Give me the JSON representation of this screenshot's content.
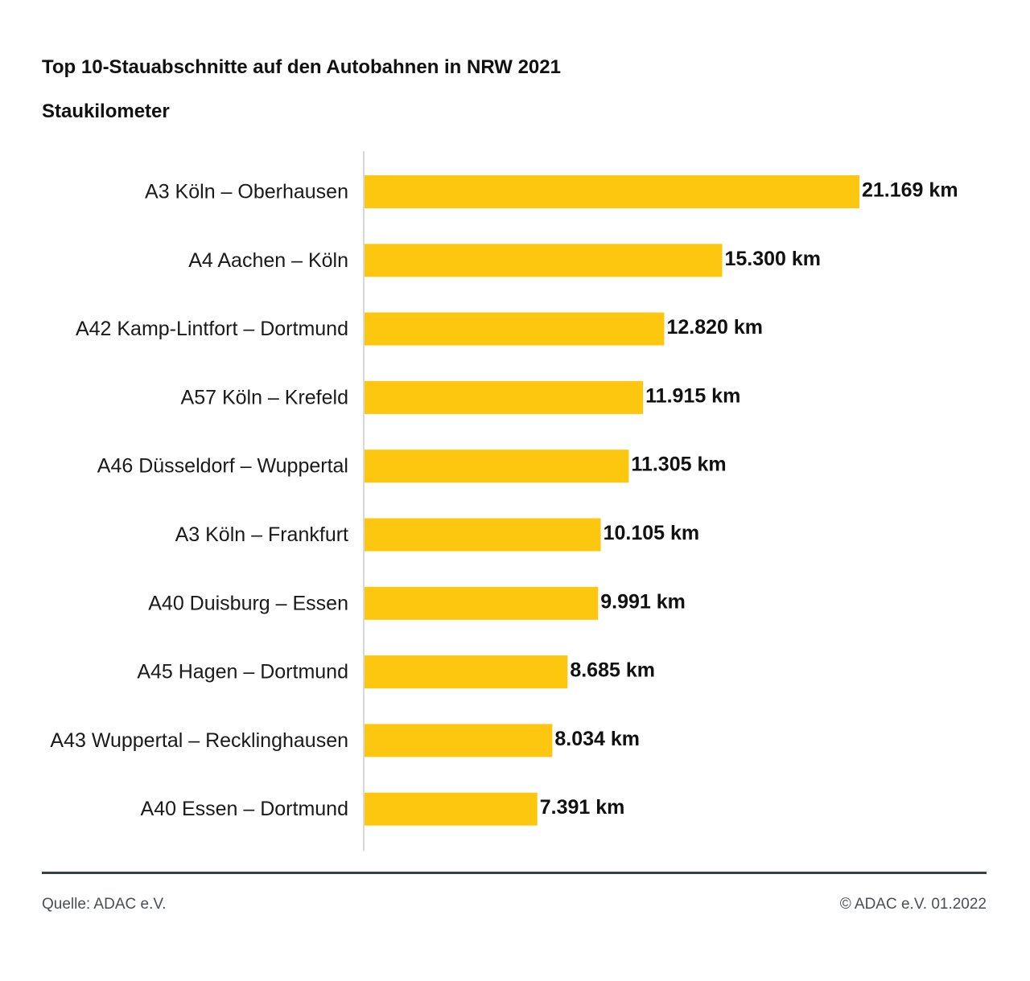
{
  "colors": {
    "bar": "#FDC70F",
    "axis": "#C8CCCF",
    "footer_rule": "#3A3F44"
  },
  "chart_data": {
    "type": "bar",
    "orientation": "horizontal",
    "title": "Top 10-Stauabschnitte auf den Autobahnen in NRW 2021",
    "subtitle": "Staukilometer",
    "unit": "km",
    "categories": [
      "A3 Köln – Oberhausen",
      "A4 Aachen – Köln",
      "A42 Kamp-Lintfort – Dortmund",
      "A57 Köln – Krefeld",
      "A46 Düsseldorf – Wuppertal",
      "A3 Köln – Frankfurt",
      "A40 Duisburg – Essen",
      "A45 Hagen – Dortmund",
      "A43 Wuppertal – Recklinghausen",
      "A40 Essen – Dortmund"
    ],
    "values": [
      21169,
      15300,
      12820,
      11915,
      11305,
      10105,
      9991,
      8685,
      8034,
      7391
    ],
    "value_labels": [
      "21.169 km",
      "15.300 km",
      "12.820 km",
      "11.915 km",
      "11.305 km",
      "10.105 km",
      "9.991 km",
      "8.685 km",
      "8.034 km",
      "7.391 km"
    ],
    "xlim": [
      0,
      21169
    ],
    "grid": false,
    "legend": "none"
  },
  "footer": {
    "source": "Quelle: ADAC e.V.",
    "copyright": "© ADAC e.V. 01.2022"
  }
}
